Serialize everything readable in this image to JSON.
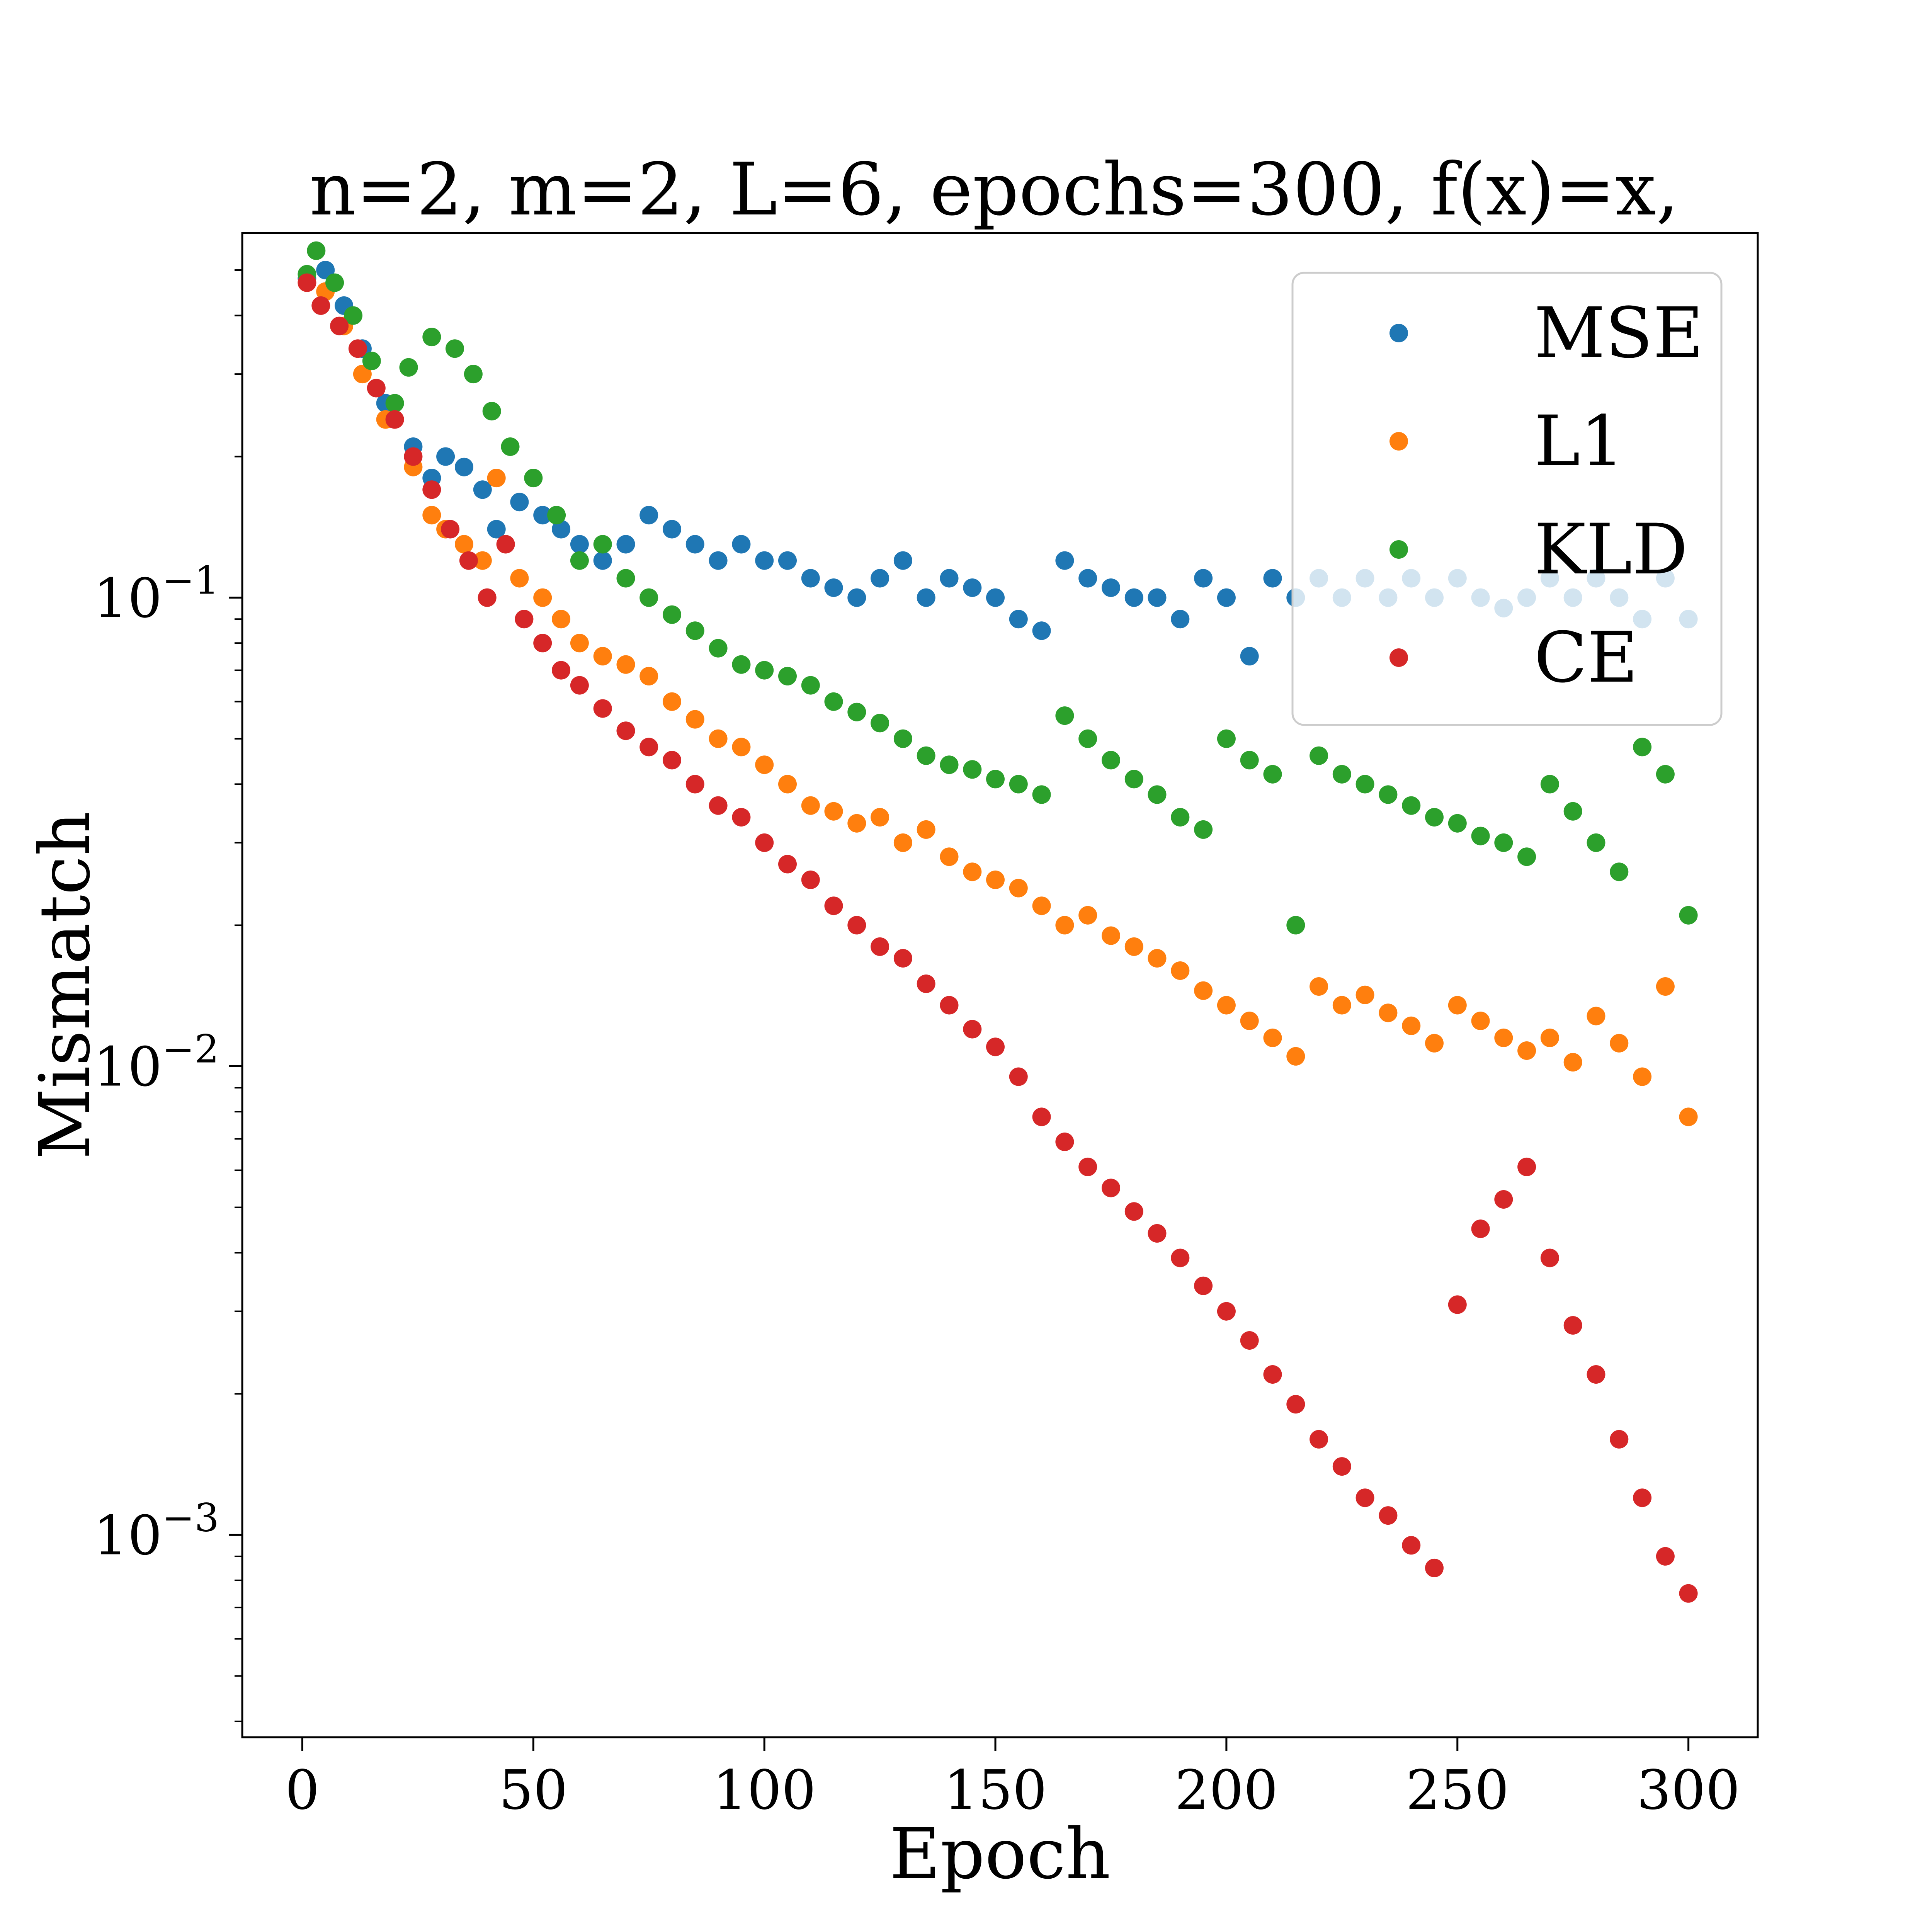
{
  "chart_data": {
    "type": "scatter",
    "title": "n=2, m=2, L=6, epochs=300, f(x)=x,",
    "xlabel": "Epoch",
    "ylabel": "Mismatch",
    "x_scale": "linear",
    "y_scale": "log",
    "xlim": [
      -13,
      315
    ],
    "ylim": [
      0.00037,
      0.6
    ],
    "x_ticks": [
      {
        "value": 0,
        "label": "0"
      },
      {
        "value": 50,
        "label": "50"
      },
      {
        "value": 100,
        "label": "100"
      },
      {
        "value": 150,
        "label": "150"
      },
      {
        "value": 200,
        "label": "200"
      },
      {
        "value": 250,
        "label": "250"
      },
      {
        "value": 300,
        "label": "300"
      }
    ],
    "y_ticks": [
      {
        "value": 0.1,
        "base": "10",
        "exp": "−1"
      },
      {
        "value": 0.01,
        "base": "10",
        "exp": "−2"
      },
      {
        "value": 0.001,
        "base": "10",
        "exp": "−3"
      }
    ],
    "grid": false,
    "legend_position": "top-right",
    "series": [
      {
        "name": "MSE",
        "color": "#1f77b4",
        "x": [
          1,
          5,
          9,
          13,
          18,
          24,
          28,
          31,
          35,
          39,
          42,
          47,
          52,
          56,
          60,
          65,
          70,
          75,
          80,
          85,
          90,
          95,
          100,
          105,
          110,
          115,
          120,
          125,
          130,
          135,
          140,
          145,
          150,
          155,
          160,
          165,
          170,
          175,
          180,
          185,
          190,
          195,
          200,
          205,
          210,
          215,
          220,
          225,
          230,
          235,
          240,
          245,
          250,
          255,
          260,
          265,
          270,
          275,
          280,
          285,
          290,
          295,
          300
        ],
        "y": [
          0.48,
          0.5,
          0.42,
          0.34,
          0.26,
          0.21,
          0.18,
          0.2,
          0.19,
          0.17,
          0.14,
          0.16,
          0.15,
          0.14,
          0.13,
          0.12,
          0.13,
          0.15,
          0.14,
          0.13,
          0.12,
          0.13,
          0.12,
          0.12,
          0.11,
          0.105,
          0.1,
          0.11,
          0.12,
          0.1,
          0.11,
          0.105,
          0.1,
          0.09,
          0.085,
          0.12,
          0.11,
          0.105,
          0.1,
          0.1,
          0.09,
          0.11,
          0.1,
          0.075,
          0.11,
          0.1,
          0.11,
          0.1,
          0.11,
          0.1,
          0.11,
          0.1,
          0.11,
          0.1,
          0.095,
          0.1,
          0.11,
          0.1,
          0.11,
          0.1,
          0.09,
          0.11,
          0.09
        ]
      },
      {
        "name": "L1",
        "color": "#ff7f0e",
        "x": [
          1,
          5,
          9,
          13,
          18,
          24,
          28,
          31,
          35,
          39,
          42,
          47,
          52,
          56,
          60,
          65,
          70,
          75,
          80,
          85,
          90,
          95,
          100,
          105,
          110,
          115,
          120,
          125,
          130,
          135,
          140,
          145,
          150,
          155,
          160,
          165,
          170,
          175,
          180,
          185,
          190,
          195,
          200,
          205,
          210,
          215,
          220,
          225,
          230,
          235,
          240,
          245,
          250,
          255,
          260,
          265,
          270,
          275,
          280,
          285,
          290,
          295,
          300
        ],
        "y": [
          0.47,
          0.45,
          0.38,
          0.3,
          0.24,
          0.19,
          0.15,
          0.14,
          0.13,
          0.12,
          0.18,
          0.11,
          0.1,
          0.09,
          0.08,
          0.075,
          0.072,
          0.068,
          0.06,
          0.055,
          0.05,
          0.048,
          0.044,
          0.04,
          0.036,
          0.035,
          0.033,
          0.034,
          0.03,
          0.032,
          0.028,
          0.026,
          0.025,
          0.024,
          0.022,
          0.02,
          0.021,
          0.019,
          0.018,
          0.017,
          0.016,
          0.0145,
          0.0135,
          0.0125,
          0.0115,
          0.0105,
          0.0148,
          0.0135,
          0.0142,
          0.013,
          0.0122,
          0.0112,
          0.0135,
          0.0125,
          0.0115,
          0.0108,
          0.0115,
          0.0102,
          0.0128,
          0.0112,
          0.0095,
          0.0148,
          0.0078
        ]
      },
      {
        "name": "KLD",
        "color": "#2ca02c",
        "x": [
          1,
          3,
          7,
          11,
          15,
          20,
          23,
          28,
          33,
          37,
          41,
          45,
          50,
          55,
          60,
          65,
          70,
          75,
          80,
          85,
          90,
          95,
          100,
          105,
          110,
          115,
          120,
          125,
          130,
          135,
          140,
          145,
          150,
          155,
          160,
          165,
          170,
          175,
          180,
          185,
          190,
          195,
          200,
          205,
          210,
          215,
          220,
          225,
          230,
          235,
          240,
          245,
          250,
          255,
          260,
          265,
          270,
          275,
          280,
          285,
          290,
          295,
          300
        ],
        "y": [
          0.49,
          0.55,
          0.47,
          0.4,
          0.32,
          0.26,
          0.31,
          0.36,
          0.34,
          0.3,
          0.25,
          0.21,
          0.18,
          0.15,
          0.12,
          0.13,
          0.11,
          0.1,
          0.092,
          0.085,
          0.078,
          0.072,
          0.07,
          0.068,
          0.065,
          0.06,
          0.057,
          0.054,
          0.05,
          0.046,
          0.044,
          0.043,
          0.041,
          0.04,
          0.038,
          0.056,
          0.05,
          0.045,
          0.041,
          0.038,
          0.034,
          0.032,
          0.05,
          0.045,
          0.042,
          0.02,
          0.046,
          0.042,
          0.04,
          0.038,
          0.036,
          0.034,
          0.033,
          0.031,
          0.03,
          0.028,
          0.04,
          0.035,
          0.03,
          0.026,
          0.048,
          0.042,
          0.021
        ]
      },
      {
        "name": "CE",
        "color": "#d62728",
        "x": [
          1,
          4,
          8,
          12,
          16,
          20,
          24,
          28,
          32,
          36,
          40,
          44,
          48,
          52,
          56,
          60,
          65,
          70,
          75,
          80,
          85,
          90,
          95,
          100,
          105,
          110,
          115,
          120,
          125,
          130,
          135,
          140,
          145,
          150,
          155,
          160,
          165,
          170,
          175,
          180,
          185,
          190,
          195,
          200,
          205,
          210,
          215,
          220,
          225,
          230,
          235,
          240,
          245,
          250,
          255,
          260,
          265,
          270,
          275,
          280,
          285,
          290,
          295,
          300
        ],
        "y": [
          0.47,
          0.42,
          0.38,
          0.34,
          0.28,
          0.24,
          0.2,
          0.17,
          0.14,
          0.12,
          0.1,
          0.13,
          0.09,
          0.08,
          0.07,
          0.065,
          0.058,
          0.052,
          0.048,
          0.045,
          0.04,
          0.036,
          0.034,
          0.03,
          0.027,
          0.025,
          0.022,
          0.02,
          0.018,
          0.017,
          0.015,
          0.0135,
          0.012,
          0.011,
          0.0095,
          0.0078,
          0.0069,
          0.0061,
          0.0055,
          0.0049,
          0.0044,
          0.0039,
          0.0034,
          0.003,
          0.0026,
          0.0022,
          0.0019,
          0.0016,
          0.0014,
          0.0012,
          0.0011,
          0.00095,
          0.00085,
          0.0031,
          0.0045,
          0.0052,
          0.0061,
          0.0039,
          0.0028,
          0.0022,
          0.0016,
          0.0012,
          0.0009,
          0.00075
        ]
      }
    ]
  }
}
